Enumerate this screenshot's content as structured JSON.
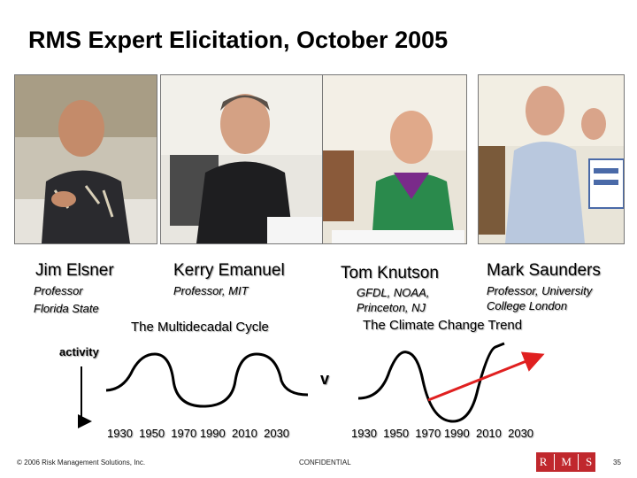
{
  "slide": {
    "title": "RMS Expert Elicitation, October 2005"
  },
  "experts": [
    {
      "name": "Jim Elsner",
      "role_line1": "Professor",
      "role_line2": "Florida State"
    },
    {
      "name": "Kerry Emanuel",
      "role_line1": "Professor, MIT",
      "role_line2": ""
    },
    {
      "name": "Tom Knutson",
      "role_line1": "GFDL, NOAA,",
      "role_line2": "Princeton, NJ"
    },
    {
      "name": "Mark Saunders",
      "role_line1": "Professor, University",
      "role_line2": "College London"
    }
  ],
  "diagram": {
    "left_label": "The Multidecadal Cycle",
    "right_label": "The Climate Change Trend",
    "y_axis_label": "activity",
    "versus": "v",
    "left_ticks": "1930  1950  1970 1990  2010  2030",
    "right_ticks": "1930  1950  1970 1990  2010  2030",
    "curve_color": "#000000",
    "trend_color": "#e02020"
  },
  "footer": {
    "copyright": "© 2006 Risk Management Solutions, Inc.",
    "confidential": "CONFIDENTIAL",
    "logo_letters": [
      "R",
      "M",
      "S"
    ],
    "logo_color": "#c0282d",
    "page_number": "35"
  }
}
